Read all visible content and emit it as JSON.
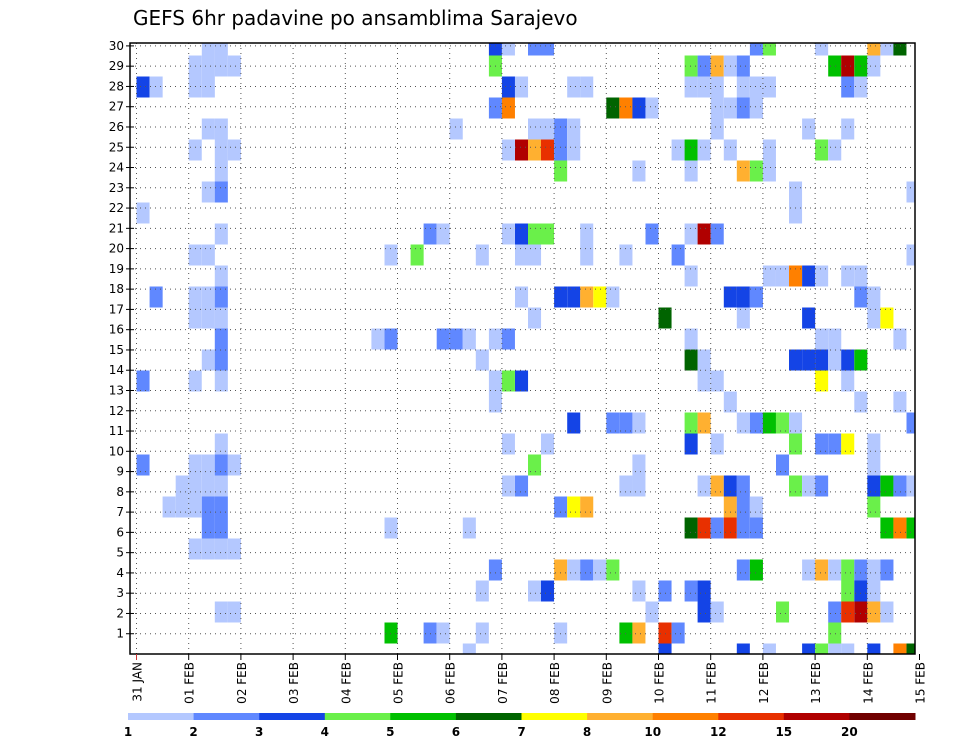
{
  "chart_data": {
    "type": "heatmap",
    "title": "GEFS 6hr padavine po ansamblima Sarajevo",
    "xlabel": "",
    "ylabel": "",
    "x_tick_labels": [
      "31 JAN",
      "01 FEB",
      "02 FEB",
      "03 FEB",
      "04 FEB",
      "05 FEB",
      "06 FEB",
      "07 FEB",
      "08 FEB",
      "09 FEB",
      "10 FEB",
      "11 FEB",
      "12 FEB",
      "13 FEB",
      "14 FEB",
      "15 FEB"
    ],
    "x_steps_per_day": 4,
    "x_step_hours": 6,
    "n_steps": 60,
    "y_tick_labels": [
      "1",
      "2",
      "3",
      "4",
      "5",
      "6",
      "7",
      "8",
      "9",
      "10",
      "11",
      "12",
      "13",
      "14",
      "15",
      "16",
      "17",
      "18",
      "19",
      "20",
      "21",
      "22",
      "23",
      "24",
      "25",
      "26",
      "27",
      "28",
      "29",
      "30"
    ],
    "grid": true,
    "legend": {
      "placement": "bottom",
      "levels": [
        1,
        2,
        3,
        4,
        5,
        6,
        7,
        8,
        10,
        12,
        15,
        20
      ],
      "labels": [
        "1",
        "2",
        "3",
        "4",
        "5",
        "6",
        "7",
        "8",
        "10",
        "12",
        "15",
        "20"
      ],
      "colors": [
        "#b4c8ff",
        "#6088ff",
        "#1444e6",
        "#6af04a",
        "#00c000",
        "#006400",
        "#ffff00",
        "#ffb030",
        "#ff8000",
        "#e83000",
        "#b00000",
        "#700000"
      ]
    },
    "cells_format": "[member, step_index, level]",
    "cells": [
      [
        29,
        5,
        1
      ],
      [
        29,
        6,
        1
      ],
      [
        29,
        27,
        3
      ],
      [
        29,
        28,
        1
      ],
      [
        29,
        30,
        2
      ],
      [
        29,
        31,
        2
      ],
      [
        29,
        47,
        2
      ],
      [
        29,
        48,
        4
      ],
      [
        29,
        52,
        1
      ],
      [
        29,
        56,
        8
      ],
      [
        29,
        57,
        1
      ],
      [
        29,
        58,
        6
      ],
      [
        28,
        4,
        1
      ],
      [
        28,
        5,
        1
      ],
      [
        28,
        6,
        1
      ],
      [
        28,
        7,
        1
      ],
      [
        28,
        27,
        4
      ],
      [
        28,
        42,
        4
      ],
      [
        28,
        43,
        2
      ],
      [
        28,
        44,
        8
      ],
      [
        28,
        45,
        1
      ],
      [
        28,
        46,
        2
      ],
      [
        28,
        53,
        5
      ],
      [
        28,
        54,
        15
      ],
      [
        28,
        55,
        5
      ],
      [
        28,
        56,
        1
      ],
      [
        27,
        0,
        3
      ],
      [
        27,
        1,
        1
      ],
      [
        27,
        4,
        1
      ],
      [
        27,
        5,
        1
      ],
      [
        27,
        28,
        3
      ],
      [
        27,
        29,
        1
      ],
      [
        27,
        33,
        1
      ],
      [
        27,
        34,
        1
      ],
      [
        27,
        42,
        1
      ],
      [
        27,
        43,
        1
      ],
      [
        27,
        44,
        1
      ],
      [
        27,
        46,
        1
      ],
      [
        27,
        47,
        1
      ],
      [
        27,
        48,
        1
      ],
      [
        27,
        54,
        2
      ],
      [
        27,
        55,
        1
      ],
      [
        26,
        27,
        2
      ],
      [
        26,
        28,
        10
      ],
      [
        26,
        36,
        6
      ],
      [
        26,
        37,
        10
      ],
      [
        26,
        38,
        3
      ],
      [
        26,
        39,
        1
      ],
      [
        26,
        44,
        1
      ],
      [
        26,
        45,
        1
      ],
      [
        26,
        46,
        2
      ],
      [
        26,
        47,
        1
      ],
      [
        25,
        5,
        1
      ],
      [
        25,
        6,
        1
      ],
      [
        25,
        24,
        1
      ],
      [
        25,
        30,
        1
      ],
      [
        25,
        31,
        1
      ],
      [
        25,
        32,
        2
      ],
      [
        25,
        33,
        1
      ],
      [
        25,
        44,
        1
      ],
      [
        25,
        51,
        1
      ],
      [
        25,
        54,
        1
      ],
      [
        24,
        4,
        1
      ],
      [
        24,
        6,
        1
      ],
      [
        24,
        7,
        1
      ],
      [
        24,
        28,
        1
      ],
      [
        24,
        29,
        15
      ],
      [
        24,
        30,
        8
      ],
      [
        24,
        31,
        12
      ],
      [
        24,
        32,
        2
      ],
      [
        24,
        33,
        1
      ],
      [
        24,
        41,
        1
      ],
      [
        24,
        42,
        5
      ],
      [
        24,
        43,
        1
      ],
      [
        24,
        45,
        1
      ],
      [
        24,
        48,
        1
      ],
      [
        24,
        52,
        4
      ],
      [
        24,
        53,
        1
      ],
      [
        23,
        6,
        1
      ],
      [
        23,
        32,
        4
      ],
      [
        23,
        38,
        1
      ],
      [
        23,
        42,
        1
      ],
      [
        23,
        46,
        8
      ],
      [
        23,
        47,
        4
      ],
      [
        23,
        48,
        1
      ],
      [
        22,
        5,
        1
      ],
      [
        22,
        6,
        2
      ],
      [
        22,
        50,
        1
      ],
      [
        22,
        59,
        1
      ],
      [
        21,
        0,
        1
      ],
      [
        21,
        50,
        1
      ],
      [
        20,
        6,
        1
      ],
      [
        20,
        22,
        2
      ],
      [
        20,
        23,
        1
      ],
      [
        20,
        28,
        1
      ],
      [
        20,
        29,
        3
      ],
      [
        20,
        30,
        4
      ],
      [
        20,
        31,
        4
      ],
      [
        20,
        34,
        1
      ],
      [
        20,
        39,
        2
      ],
      [
        20,
        42,
        1
      ],
      [
        20,
        43,
        15
      ],
      [
        20,
        44,
        2
      ],
      [
        19,
        4,
        1
      ],
      [
        19,
        5,
        1
      ],
      [
        19,
        19,
        1
      ],
      [
        19,
        21,
        4
      ],
      [
        19,
        26,
        1
      ],
      [
        19,
        29,
        1
      ],
      [
        19,
        30,
        1
      ],
      [
        19,
        34,
        1
      ],
      [
        19,
        37,
        1
      ],
      [
        19,
        41,
        2
      ],
      [
        19,
        59,
        1
      ],
      [
        18,
        6,
        1
      ],
      [
        18,
        42,
        1
      ],
      [
        18,
        48,
        1
      ],
      [
        18,
        49,
        1
      ],
      [
        18,
        50,
        10
      ],
      [
        18,
        51,
        3
      ],
      [
        18,
        52,
        1
      ],
      [
        18,
        54,
        1
      ],
      [
        18,
        55,
        1
      ],
      [
        17,
        1,
        2
      ],
      [
        17,
        4,
        1
      ],
      [
        17,
        5,
        1
      ],
      [
        17,
        6,
        2
      ],
      [
        17,
        29,
        1
      ],
      [
        17,
        32,
        3
      ],
      [
        17,
        33,
        3
      ],
      [
        17,
        34,
        8
      ],
      [
        17,
        35,
        7
      ],
      [
        17,
        36,
        1
      ],
      [
        17,
        45,
        3
      ],
      [
        17,
        46,
        3
      ],
      [
        17,
        47,
        2
      ],
      [
        17,
        55,
        2
      ],
      [
        17,
        56,
        1
      ],
      [
        16,
        4,
        1
      ],
      [
        16,
        5,
        1
      ],
      [
        16,
        6,
        1
      ],
      [
        16,
        30,
        1
      ],
      [
        16,
        40,
        6
      ],
      [
        16,
        46,
        1
      ],
      [
        16,
        51,
        3
      ],
      [
        16,
        56,
        1
      ],
      [
        16,
        57,
        7
      ],
      [
        15,
        6,
        2
      ],
      [
        15,
        18,
        1
      ],
      [
        15,
        19,
        2
      ],
      [
        15,
        23,
        2
      ],
      [
        15,
        24,
        2
      ],
      [
        15,
        25,
        1
      ],
      [
        15,
        27,
        1
      ],
      [
        15,
        28,
        2
      ],
      [
        15,
        42,
        1
      ],
      [
        15,
        52,
        1
      ],
      [
        15,
        53,
        1
      ],
      [
        15,
        58,
        1
      ],
      [
        14,
        5,
        1
      ],
      [
        14,
        6,
        2
      ],
      [
        14,
        26,
        1
      ],
      [
        14,
        42,
        6
      ],
      [
        14,
        43,
        1
      ],
      [
        14,
        50,
        3
      ],
      [
        14,
        51,
        3
      ],
      [
        14,
        52,
        3
      ],
      [
        14,
        53,
        1
      ],
      [
        14,
        54,
        3
      ],
      [
        14,
        55,
        5
      ],
      [
        13,
        0,
        2
      ],
      [
        13,
        4,
        1
      ],
      [
        13,
        6,
        1
      ],
      [
        13,
        27,
        1
      ],
      [
        13,
        28,
        4
      ],
      [
        13,
        29,
        3
      ],
      [
        13,
        43,
        1
      ],
      [
        13,
        44,
        1
      ],
      [
        13,
        52,
        7
      ],
      [
        13,
        54,
        1
      ],
      [
        12,
        27,
        1
      ],
      [
        12,
        45,
        1
      ],
      [
        12,
        55,
        1
      ],
      [
        12,
        58,
        1
      ],
      [
        11,
        33,
        3
      ],
      [
        11,
        36,
        2
      ],
      [
        11,
        37,
        2
      ],
      [
        11,
        38,
        1
      ],
      [
        11,
        42,
        4
      ],
      [
        11,
        43,
        8
      ],
      [
        11,
        46,
        1
      ],
      [
        11,
        47,
        2
      ],
      [
        11,
        48,
        5
      ],
      [
        11,
        49,
        4
      ],
      [
        11,
        50,
        1
      ],
      [
        11,
        59,
        2
      ],
      [
        10,
        6,
        1
      ],
      [
        10,
        28,
        1
      ],
      [
        10,
        31,
        1
      ],
      [
        10,
        42,
        3
      ],
      [
        10,
        44,
        1
      ],
      [
        10,
        50,
        4
      ],
      [
        10,
        52,
        2
      ],
      [
        10,
        53,
        2
      ],
      [
        10,
        54,
        7
      ],
      [
        10,
        56,
        1
      ],
      [
        9,
        0,
        2
      ],
      [
        9,
        4,
        1
      ],
      [
        9,
        5,
        1
      ],
      [
        9,
        6,
        2
      ],
      [
        9,
        7,
        1
      ],
      [
        9,
        30,
        4
      ],
      [
        9,
        38,
        1
      ],
      [
        9,
        49,
        2
      ],
      [
        9,
        56,
        1
      ],
      [
        8,
        3,
        1
      ],
      [
        8,
        4,
        1
      ],
      [
        8,
        5,
        1
      ],
      [
        8,
        6,
        1
      ],
      [
        8,
        28,
        1
      ],
      [
        8,
        29,
        2
      ],
      [
        8,
        37,
        1
      ],
      [
        8,
        38,
        1
      ],
      [
        8,
        43,
        1
      ],
      [
        8,
        44,
        8
      ],
      [
        8,
        45,
        3
      ],
      [
        8,
        46,
        2
      ],
      [
        8,
        50,
        4
      ],
      [
        8,
        51,
        1
      ],
      [
        8,
        52,
        2
      ],
      [
        8,
        56,
        3
      ],
      [
        8,
        57,
        5
      ],
      [
        8,
        58,
        2
      ],
      [
        8,
        59,
        1
      ],
      [
        7,
        2,
        1
      ],
      [
        7,
        3,
        1
      ],
      [
        7,
        4,
        1
      ],
      [
        7,
        5,
        2
      ],
      [
        7,
        6,
        2
      ],
      [
        7,
        32,
        2
      ],
      [
        7,
        33,
        7
      ],
      [
        7,
        34,
        8
      ],
      [
        7,
        45,
        8
      ],
      [
        7,
        46,
        2
      ],
      [
        7,
        47,
        1
      ],
      [
        7,
        56,
        4
      ],
      [
        6,
        5,
        2
      ],
      [
        6,
        6,
        2
      ],
      [
        6,
        19,
        1
      ],
      [
        6,
        25,
        1
      ],
      [
        6,
        42,
        6
      ],
      [
        6,
        43,
        12
      ],
      [
        6,
        44,
        2
      ],
      [
        6,
        45,
        12
      ],
      [
        6,
        46,
        2
      ],
      [
        6,
        47,
        2
      ],
      [
        6,
        57,
        5
      ],
      [
        6,
        58,
        10
      ],
      [
        6,
        59,
        5
      ],
      [
        5,
        4,
        1
      ],
      [
        5,
        5,
        1
      ],
      [
        5,
        6,
        1
      ],
      [
        5,
        7,
        1
      ],
      [
        4,
        27,
        2
      ],
      [
        4,
        32,
        8
      ],
      [
        4,
        33,
        1
      ],
      [
        4,
        34,
        2
      ],
      [
        4,
        35,
        1
      ],
      [
        4,
        36,
        4
      ],
      [
        4,
        46,
        2
      ],
      [
        4,
        47,
        5
      ],
      [
        4,
        51,
        1
      ],
      [
        4,
        52,
        8
      ],
      [
        4,
        53,
        1
      ],
      [
        4,
        54,
        4
      ],
      [
        4,
        55,
        2
      ],
      [
        4,
        56,
        1
      ],
      [
        4,
        57,
        2
      ],
      [
        3,
        26,
        1
      ],
      [
        3,
        30,
        1
      ],
      [
        3,
        31,
        3
      ],
      [
        3,
        38,
        1
      ],
      [
        3,
        40,
        2
      ],
      [
        3,
        42,
        2
      ],
      [
        3,
        43,
        3
      ],
      [
        3,
        54,
        4
      ],
      [
        3,
        55,
        3
      ],
      [
        3,
        56,
        1
      ],
      [
        2,
        6,
        1
      ],
      [
        2,
        7,
        1
      ],
      [
        2,
        39,
        1
      ],
      [
        2,
        43,
        3
      ],
      [
        2,
        44,
        1
      ],
      [
        2,
        49,
        4
      ],
      [
        2,
        53,
        2
      ],
      [
        2,
        54,
        12
      ],
      [
        2,
        55,
        15
      ],
      [
        2,
        56,
        8
      ],
      [
        2,
        57,
        1
      ],
      [
        1,
        19,
        5
      ],
      [
        1,
        22,
        2
      ],
      [
        1,
        23,
        1
      ],
      [
        1,
        26,
        1
      ],
      [
        1,
        32,
        1
      ],
      [
        1,
        37,
        5
      ],
      [
        1,
        38,
        8
      ],
      [
        1,
        40,
        12
      ],
      [
        1,
        41,
        2
      ],
      [
        1,
        53,
        4
      ],
      [
        0,
        25,
        1
      ],
      [
        0,
        40,
        3
      ],
      [
        0,
        46,
        3
      ],
      [
        0,
        48,
        1
      ],
      [
        0,
        51,
        3
      ],
      [
        0,
        52,
        4
      ],
      [
        0,
        53,
        1
      ],
      [
        0,
        54,
        1
      ],
      [
        0,
        56,
        3
      ],
      [
        0,
        58,
        10
      ],
      [
        0,
        59,
        6
      ]
    ]
  }
}
